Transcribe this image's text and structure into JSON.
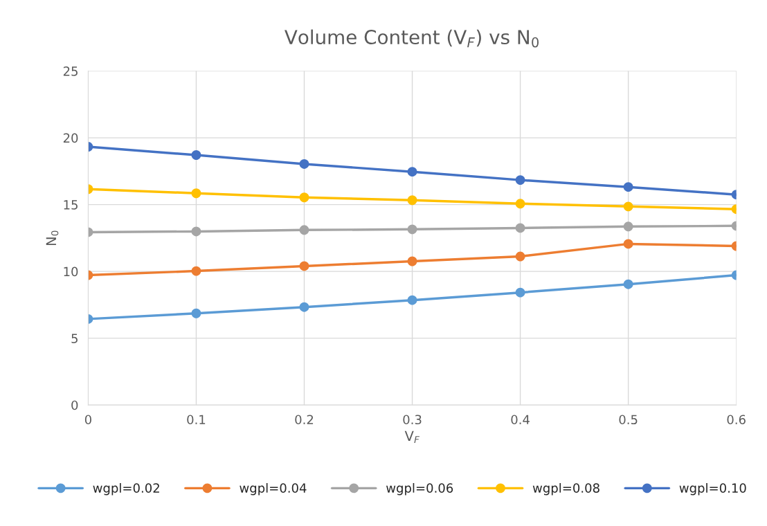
{
  "chart_data": {
    "type": "line",
    "title": "Volume Content (V$_{F}$) vs N$_{0}$",
    "xlabel": "V$_{F}$",
    "ylabel": "N$_{0}$",
    "x": [
      0,
      0.1,
      0.2,
      0.3,
      0.4,
      0.5,
      0.6
    ],
    "series": [
      {
        "name": "wgpl=0.02",
        "color": "#5b9bd5",
        "values": [
          6.44,
          6.86,
          7.33,
          7.85,
          8.42,
          9.04,
          9.72
        ]
      },
      {
        "name": "wgpl=0.04",
        "color": "#ed7d31",
        "values": [
          9.72,
          10.03,
          10.4,
          10.76,
          11.12,
          12.06,
          11.9
        ]
      },
      {
        "name": "wgpl=0.06",
        "color": "#a5a5a5",
        "values": [
          12.94,
          12.99,
          13.1,
          13.15,
          13.25,
          13.36,
          13.41
        ]
      },
      {
        "name": "wgpl=0.08",
        "color": "#ffc000",
        "values": [
          16.16,
          15.85,
          15.54,
          15.33,
          15.07,
          14.86,
          14.66
        ]
      },
      {
        "name": "wgpl=0.10",
        "color": "#4472c4",
        "values": [
          19.33,
          18.71,
          18.04,
          17.46,
          16.84,
          16.32,
          15.75
        ]
      }
    ],
    "xlim": [
      0,
      0.6
    ],
    "xticks": [
      0,
      0.1,
      0.2,
      0.3,
      0.4,
      0.5,
      0.6
    ],
    "ylim": [
      0,
      25
    ],
    "yticks": [
      0,
      5,
      10,
      15,
      20,
      25
    ],
    "grid": true,
    "legend": "bottom",
    "marker": "circle",
    "line_style": "solid"
  }
}
